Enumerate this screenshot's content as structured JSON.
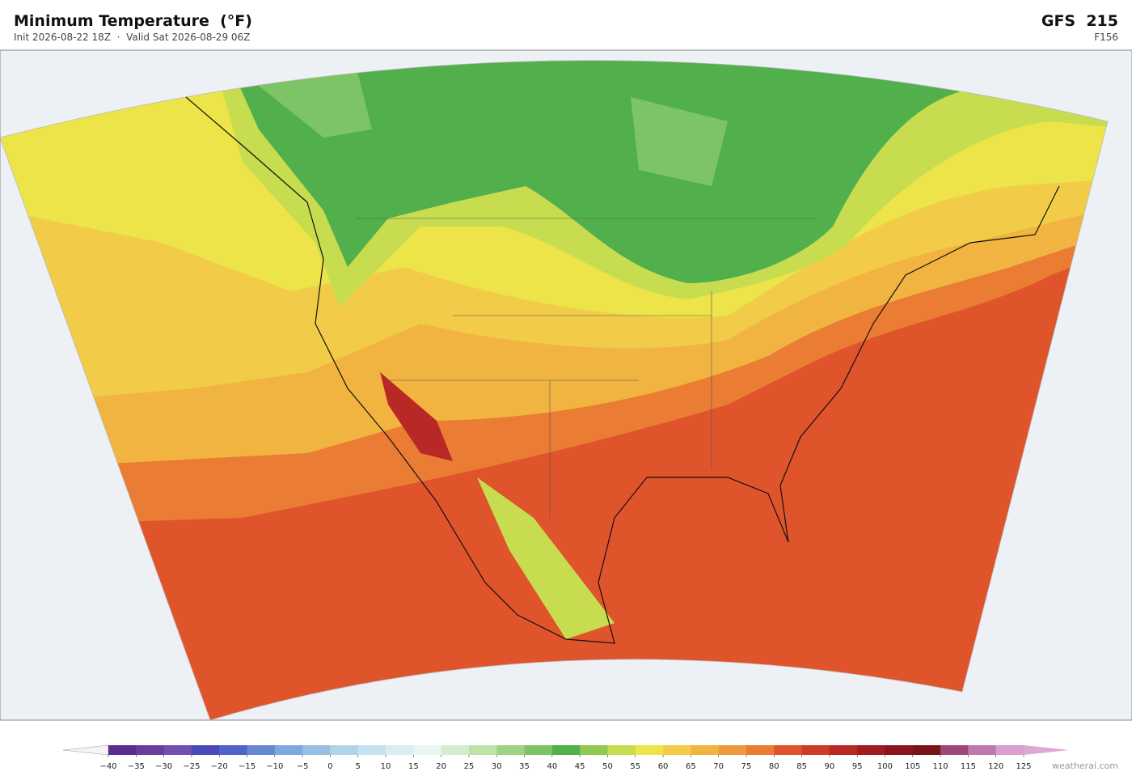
{
  "header": {
    "title": "Minimum Temperature  (°F)",
    "subtitle": "Init 2026-08-22 18Z  ·  Valid Sat 2026-08-29 06Z",
    "model": "GFS  215",
    "forecast_hour": "F156"
  },
  "colorbar": {
    "ticks": [
      "−40",
      "−35",
      "−30",
      "−25",
      "−20",
      "−15",
      "−10",
      "−5",
      "0",
      "5",
      "10",
      "15",
      "20",
      "25",
      "30",
      "35",
      "40",
      "45",
      "50",
      "55",
      "60",
      "65",
      "70",
      "75",
      "80",
      "85",
      "90",
      "95",
      "100",
      "105",
      "110",
      "115",
      "120",
      "125"
    ],
    "colors": [
      "#5b2d8e",
      "#6a3d9a",
      "#7050b0",
      "#4848b8",
      "#4f63c8",
      "#6688d0",
      "#80a8dc",
      "#98c0e4",
      "#b0d4ea",
      "#c4e2ef",
      "#d8eef2",
      "#e8f6ef",
      "#d6ecd0",
      "#bde3a8",
      "#9ed484",
      "#7cc466",
      "#52b04c",
      "#90c850",
      "#c8dc50",
      "#ece448",
      "#f2cc48",
      "#f2b440",
      "#ee9a3c",
      "#ea7c34",
      "#e0542c",
      "#cc3c28",
      "#b82824",
      "#a01c20",
      "#8c141c",
      "#781418",
      "#9c4878",
      "#c078b0",
      "#d8a0cc"
    ],
    "under_color": "#f4f4f4",
    "over_color": "#dca8d4"
  },
  "footer": {
    "credit": "weatherai.com"
  }
}
